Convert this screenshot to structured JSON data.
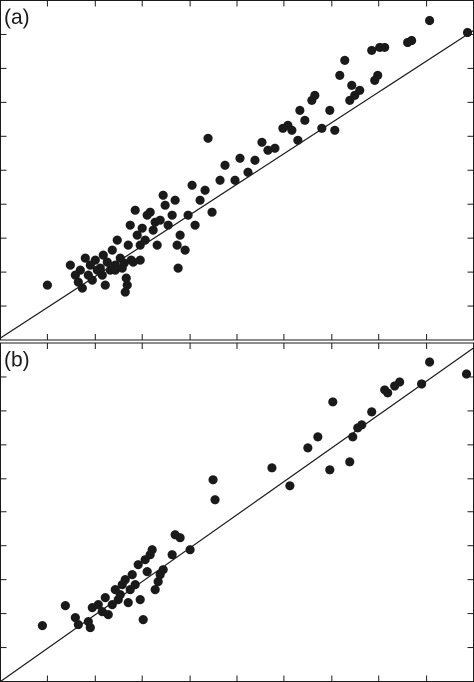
{
  "chart_data": [
    {
      "type": "scatter",
      "title": "(a)",
      "color": "#1a1a1a",
      "xlim": [
        0,
        474
      ],
      "xticks": [
        47,
        95,
        142,
        190,
        237,
        284,
        332,
        379,
        427
      ],
      "ylim": [
        0,
        340
      ],
      "yticks": [
        34,
        68,
        102,
        136,
        170,
        204,
        238,
        272,
        306
      ],
      "x": [
        47,
        70,
        75,
        78,
        80,
        82,
        85,
        88,
        90,
        92,
        95,
        97,
        100,
        102,
        103,
        105,
        107,
        110,
        112,
        115,
        117,
        120,
        122,
        124,
        126,
        128,
        130,
        131,
        133,
        135,
        137,
        140,
        142,
        145,
        147,
        150,
        153,
        155,
        157,
        160,
        163,
        165,
        168,
        172,
        175,
        177,
        178,
        180,
        185,
        188,
        192,
        195,
        200,
        205,
        208,
        212,
        220,
        225,
        235,
        240,
        248,
        255,
        262,
        268,
        275,
        283,
        288,
        292,
        298,
        300,
        305,
        312,
        315,
        322,
        330,
        335,
        340,
        345,
        350,
        352,
        355,
        360,
        372,
        375,
        378,
        380,
        385,
        408,
        412,
        430,
        468,
        125,
        127,
        140,
        115
      ],
      "values": [
        55,
        75,
        65,
        58,
        70,
        52,
        82,
        65,
        75,
        60,
        80,
        70,
        72,
        65,
        85,
        55,
        78,
        70,
        90,
        75,
        100,
        82,
        72,
        77,
        62,
        95,
        115,
        80,
        78,
        130,
        105,
        95,
        112,
        100,
        125,
        128,
        110,
        118,
        95,
        120,
        145,
        135,
        115,
        125,
        140,
        95,
        72,
        105,
        90,
        125,
        155,
        115,
        140,
        150,
        202,
        128,
        160,
        175,
        160,
        182,
        168,
        180,
        198,
        190,
        192,
        212,
        215,
        210,
        200,
        230,
        220,
        240,
        245,
        212,
        230,
        210,
        265,
        280,
        240,
        255,
        245,
        250,
        290,
        260,
        265,
        293,
        293,
        298,
        300,
        320,
        308,
        48,
        55,
        80,
        70
      ],
      "reference_line": {
        "x": [
          0,
          474
        ],
        "values": [
          2,
          310
        ]
      }
    },
    {
      "type": "scatter",
      "title": "(b)",
      "color": "#1a1a1a",
      "xlim": [
        0,
        474
      ],
      "xticks": [
        47,
        95,
        142,
        190,
        237,
        284,
        332,
        379,
        427
      ],
      "ylim": [
        0,
        339
      ],
      "yticks": [
        34,
        68,
        102,
        136,
        170,
        203,
        237,
        271,
        305
      ],
      "x": [
        42,
        65,
        75,
        78,
        88,
        90,
        92,
        98,
        102,
        105,
        108,
        112,
        115,
        118,
        120,
        122,
        125,
        128,
        130,
        132,
        135,
        138,
        140,
        143,
        145,
        147,
        150,
        152,
        155,
        158,
        160,
        163,
        172,
        175,
        180,
        190,
        213,
        215,
        272,
        290,
        308,
        318,
        330,
        333,
        350,
        353,
        358,
        362,
        372,
        385,
        388,
        395,
        400,
        422,
        430,
        467
      ],
      "values": [
        56,
        76,
        64,
        57,
        60,
        54,
        74,
        77,
        70,
        84,
        67,
        77,
        92,
        82,
        87,
        97,
        102,
        79,
        92,
        107,
        97,
        117,
        82,
        62,
        122,
        110,
        127,
        132,
        92,
        100,
        107,
        112,
        127,
        147,
        144,
        132,
        202,
        182,
        214,
        196,
        234,
        245,
        212,
        280,
        220,
        245,
        254,
        257,
        270,
        292,
        289,
        296,
        300,
        298,
        320,
        308
      ],
      "reference_line": {
        "x": [
          0,
          474
        ],
        "values": [
          0,
          334
        ]
      }
    }
  ]
}
